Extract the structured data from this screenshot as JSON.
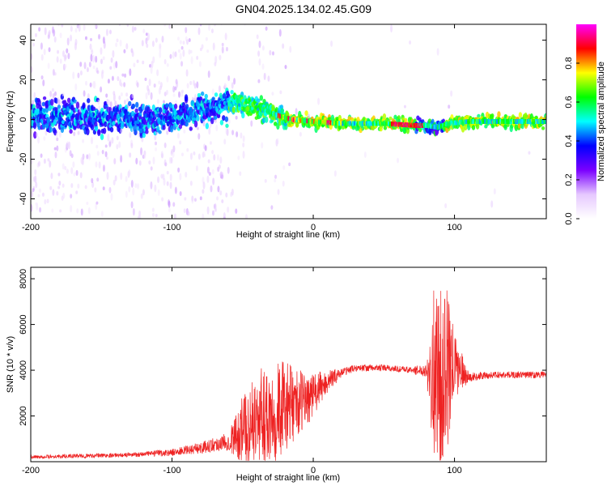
{
  "title": "GN04.2025.134.02.45.G09",
  "chart_data": [
    {
      "type": "heatmap",
      "xlabel": "Height of straight line (km)",
      "ylabel": "Frequency (Hz)",
      "xlim": [
        -200,
        165
      ],
      "ylim": [
        -50,
        48
      ],
      "xticks": [
        -200,
        -100,
        0,
        100
      ],
      "yticks": [
        -40,
        -20,
        0,
        20,
        40
      ],
      "colorbar": {
        "label": "Normalized spectral amplitude",
        "ticks": [
          0.0,
          0.2,
          0.4,
          0.6,
          0.8
        ],
        "range": [
          0,
          1
        ],
        "colors": [
          "#ffffff",
          "#e6c8ff",
          "#7a00ff",
          "#0000ff",
          "#00ffff",
          "#00ff00",
          "#ffff00",
          "#ff0000",
          "#ff00ff"
        ]
      },
      "ridge": {
        "x": [
          -200,
          -150,
          -110,
          -90,
          -70,
          -55,
          -45,
          -35,
          -25,
          -15,
          0,
          20,
          50,
          72,
          80,
          88,
          95,
          110,
          130,
          165
        ],
        "y": [
          2,
          1,
          0,
          3,
          6,
          8,
          7,
          5,
          2,
          0,
          -1,
          -2,
          -2,
          -3,
          -3,
          -4,
          -2,
          -1,
          -1,
          -1
        ]
      }
    },
    {
      "type": "line",
      "xlabel": "Height of straight line (km)",
      "ylabel": "SNR (10 * v/v)",
      "xlim": [
        -200,
        165
      ],
      "ylim": [
        0,
        8500
      ],
      "xticks": [
        -200,
        -100,
        0,
        100
      ],
      "yticks": [
        2000,
        4000,
        6000,
        8000
      ],
      "color": "#ee2222",
      "envelope": {
        "x": [
          -200,
          -130,
          -100,
          -80,
          -60,
          -50,
          -40,
          -30,
          -20,
          -10,
          0,
          10,
          20,
          30,
          50,
          70,
          80,
          85,
          90,
          95,
          100,
          110,
          130,
          165
        ],
        "mean": [
          200,
          300,
          400,
          600,
          900,
          1400,
          1800,
          2200,
          2400,
          2600,
          2900,
          3500,
          3900,
          4100,
          4100,
          4000,
          4000,
          4000,
          3500,
          4000,
          4200,
          3700,
          3800,
          3800
        ],
        "amp": [
          80,
          100,
          150,
          250,
          400,
          1500,
          2000,
          2500,
          2000,
          1400,
          1000,
          500,
          200,
          150,
          150,
          150,
          300,
          3500,
          4000,
          3500,
          1500,
          200,
          150,
          150
        ]
      }
    }
  ]
}
